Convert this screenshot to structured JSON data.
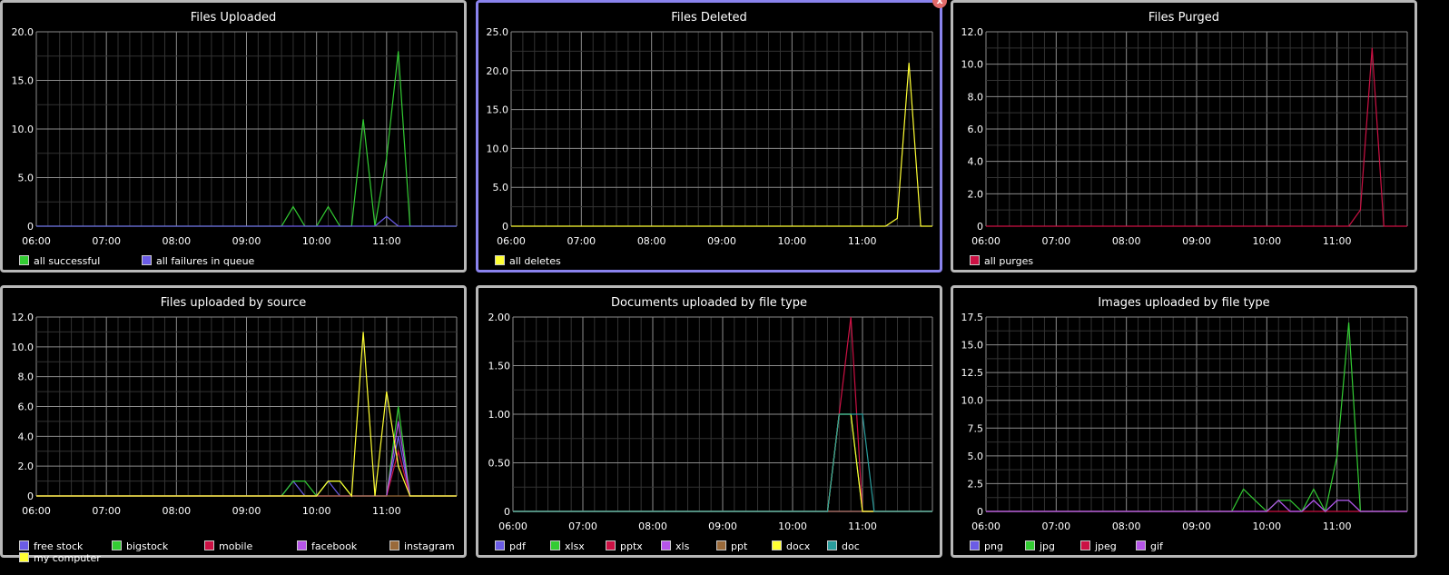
{
  "colors": {
    "grid_minor": "#333333",
    "grid_major": "#8c8c8c",
    "axis_text": "#ffffff",
    "border": "#b8b8b8",
    "selected_border": "#8a83ee"
  },
  "panels": [
    {
      "title": "Files Uploaded",
      "selected": false
    },
    {
      "title": "Files Deleted",
      "selected": true,
      "close_label": "x"
    },
    {
      "title": "Files Purged",
      "selected": false
    },
    {
      "title": "Files uploaded by source",
      "selected": false
    },
    {
      "title": "Documents uploaded by file type",
      "selected": false
    },
    {
      "title": "Images uploaded by file type",
      "selected": false
    }
  ],
  "chart_data": [
    {
      "type": "line",
      "title": "Files Uploaded",
      "x_ticks": [
        "06:00",
        "07:00",
        "08:00",
        "09:00",
        "10:00",
        "11:00"
      ],
      "x_range": [
        "06:00",
        "12:00"
      ],
      "x": [
        "06:00",
        "06:10",
        "06:20",
        "06:30",
        "06:40",
        "06:50",
        "07:00",
        "07:10",
        "07:20",
        "07:30",
        "07:40",
        "07:50",
        "08:00",
        "08:10",
        "08:20",
        "08:30",
        "08:40",
        "08:50",
        "09:00",
        "09:10",
        "09:20",
        "09:30",
        "09:40",
        "09:50",
        "10:00",
        "10:10",
        "10:20",
        "10:30",
        "10:40",
        "10:50",
        "11:00",
        "11:10",
        "11:20",
        "11:30",
        "11:40",
        "11:50",
        "12:00"
      ],
      "ylim": [
        0,
        20
      ],
      "y_ticks": [
        "0",
        "5.0",
        "10.0",
        "15.0",
        "20.0"
      ],
      "series": [
        {
          "name": "all successful",
          "color": "#33cc33",
          "values": [
            0,
            0,
            0,
            0,
            0,
            0,
            0,
            0,
            0,
            0,
            0,
            0,
            0,
            0,
            0,
            0,
            0,
            0,
            0,
            0,
            0,
            0,
            2,
            0,
            0,
            2,
            0,
            0,
            11,
            0,
            7,
            18,
            0,
            0,
            0,
            0,
            0
          ]
        },
        {
          "name": "all failures in queue",
          "color": "#6b5ce6",
          "values": [
            0,
            0,
            0,
            0,
            0,
            0,
            0,
            0,
            0,
            0,
            0,
            0,
            0,
            0,
            0,
            0,
            0,
            0,
            0,
            0,
            0,
            0,
            0,
            0,
            0,
            0,
            0,
            0,
            0,
            0,
            1,
            0,
            0,
            0,
            0,
            0,
            0
          ]
        }
      ],
      "legend": [
        "all successful",
        "all failures in queue"
      ]
    },
    {
      "type": "line",
      "title": "Files Deleted",
      "x_ticks": [
        "06:00",
        "07:00",
        "08:00",
        "09:00",
        "10:00",
        "11:00"
      ],
      "x_range": [
        "06:00",
        "12:00"
      ],
      "x": [
        "06:00",
        "11:20",
        "11:30",
        "11:40",
        "11:50",
        "12:00"
      ],
      "ylim": [
        0,
        25
      ],
      "y_ticks": [
        "0",
        "5.0",
        "10.0",
        "15.0",
        "20.0",
        "25.0"
      ],
      "series": [
        {
          "name": "all deletes",
          "color": "#ffff33",
          "values": [
            0,
            0,
            1,
            21,
            0,
            0
          ]
        }
      ],
      "legend": [
        "all deletes"
      ]
    },
    {
      "type": "line",
      "title": "Files Purged",
      "x_ticks": [
        "06:00",
        "07:00",
        "08:00",
        "09:00",
        "10:00",
        "11:00"
      ],
      "x_range": [
        "06:00",
        "12:00"
      ],
      "x": [
        "06:00",
        "11:10",
        "11:20",
        "11:30",
        "11:40",
        "12:00"
      ],
      "ylim": [
        0,
        12
      ],
      "y_ticks": [
        "0",
        "2.0",
        "4.0",
        "6.0",
        "8.0",
        "10.0",
        "12.0"
      ],
      "series": [
        {
          "name": "all purges",
          "color": "#cc1144",
          "values": [
            0,
            0,
            1,
            11,
            0,
            0
          ]
        }
      ],
      "legend": [
        "all purges"
      ]
    },
    {
      "type": "line",
      "title": "Files uploaded by source",
      "x_ticks": [
        "06:00",
        "07:00",
        "08:00",
        "09:00",
        "10:00",
        "11:00"
      ],
      "x_range": [
        "06:00",
        "12:00"
      ],
      "x": [
        "06:00",
        "09:30",
        "09:40",
        "09:50",
        "10:00",
        "10:10",
        "10:20",
        "10:30",
        "10:40",
        "10:50",
        "11:00",
        "11:10",
        "11:20",
        "12:00"
      ],
      "ylim": [
        0,
        12
      ],
      "y_ticks": [
        "0",
        "2.0",
        "4.0",
        "6.0",
        "8.0",
        "10.0",
        "12.0"
      ],
      "series": [
        {
          "name": "free stock",
          "color": "#6b5ce6",
          "values": [
            0,
            0,
            1,
            0,
            0,
            1,
            0,
            0,
            0,
            0,
            0,
            4,
            0,
            0
          ]
        },
        {
          "name": "bigstock",
          "color": "#33cc33",
          "values": [
            0,
            0,
            1,
            1,
            0,
            1,
            1,
            0,
            0,
            0,
            0,
            6,
            0,
            0
          ]
        },
        {
          "name": "mobile",
          "color": "#cc1144",
          "values": [
            0,
            0,
            0,
            0,
            0,
            0,
            0,
            0,
            0,
            0,
            0,
            3,
            0,
            0
          ]
        },
        {
          "name": "facebook",
          "color": "#b655e8",
          "values": [
            0,
            0,
            0,
            0,
            0,
            0,
            0,
            0,
            0,
            0,
            0,
            5,
            0,
            0
          ]
        },
        {
          "name": "instagram",
          "color": "#9a6a3a",
          "values": [
            0,
            0,
            0,
            0,
            0,
            0,
            0,
            0,
            0,
            0,
            0,
            0,
            0,
            0
          ]
        },
        {
          "name": "my computer",
          "color": "#ffff33",
          "values": [
            0,
            0,
            0,
            0,
            0,
            1,
            1,
            0,
            11,
            0,
            7,
            2,
            0,
            0
          ]
        }
      ],
      "legend": [
        "free stock",
        "bigstock",
        "mobile",
        "facebook",
        "instagram",
        "my computer"
      ]
    },
    {
      "type": "line",
      "title": "Documents uploaded by file type",
      "x_ticks": [
        "06:00",
        "07:00",
        "08:00",
        "09:00",
        "10:00",
        "11:00"
      ],
      "x_range": [
        "06:00",
        "12:00"
      ],
      "x": [
        "06:00",
        "10:30",
        "10:40",
        "10:50",
        "11:00",
        "11:10",
        "12:00"
      ],
      "ylim": [
        0,
        2
      ],
      "y_ticks": [
        "0",
        "0.50",
        "1.00",
        "1.50",
        "2.00"
      ],
      "series": [
        {
          "name": "pdf",
          "color": "#6b5ce6",
          "values": [
            0,
            0,
            0,
            0,
            0,
            0,
            0
          ]
        },
        {
          "name": "xlsx",
          "color": "#33cc33",
          "values": [
            0,
            0,
            1,
            1,
            0,
            0,
            0
          ]
        },
        {
          "name": "pptx",
          "color": "#cc1144",
          "values": [
            0,
            0,
            1,
            2,
            0,
            0,
            0
          ]
        },
        {
          "name": "xls",
          "color": "#b655e8",
          "values": [
            0,
            0,
            0,
            0,
            0,
            0,
            0
          ]
        },
        {
          "name": "ppt",
          "color": "#9a6a3a",
          "values": [
            0,
            0,
            0,
            0,
            0,
            0,
            0
          ]
        },
        {
          "name": "docx",
          "color": "#ffff33",
          "values": [
            0,
            0,
            1,
            1,
            0,
            0,
            0
          ]
        },
        {
          "name": "doc",
          "color": "#2a9d9d",
          "values": [
            0,
            0,
            1,
            1,
            1,
            0,
            0
          ]
        }
      ],
      "legend": [
        "pdf",
        "xlsx",
        "pptx",
        "xls",
        "ppt",
        "docx",
        "doc"
      ]
    },
    {
      "type": "line",
      "title": "Images uploaded by file type",
      "x_ticks": [
        "06:00",
        "07:00",
        "08:00",
        "09:00",
        "10:00",
        "11:00"
      ],
      "x_range": [
        "06:00",
        "12:00"
      ],
      "x": [
        "06:00",
        "09:30",
        "09:40",
        "09:50",
        "10:00",
        "10:10",
        "10:20",
        "10:30",
        "10:40",
        "10:50",
        "11:00",
        "11:10",
        "11:20",
        "12:00"
      ],
      "ylim": [
        0,
        17.5
      ],
      "y_ticks": [
        "0",
        "2.5",
        "5.0",
        "7.5",
        "10.0",
        "12.5",
        "15.0",
        "17.5"
      ],
      "series": [
        {
          "name": "png",
          "color": "#6b5ce6",
          "values": [
            0,
            0,
            0,
            0,
            0,
            1,
            0,
            0,
            1,
            0,
            1,
            1,
            0,
            0
          ]
        },
        {
          "name": "jpg",
          "color": "#33cc33",
          "values": [
            0,
            0,
            2,
            1,
            0,
            1,
            1,
            0,
            2,
            0,
            5,
            17,
            0,
            0
          ]
        },
        {
          "name": "jpeg",
          "color": "#cc1144",
          "values": [
            0,
            0,
            0,
            0,
            0,
            0,
            0,
            0,
            0,
            0,
            0,
            0,
            0,
            0
          ]
        },
        {
          "name": "gif",
          "color": "#b655e8",
          "values": [
            0,
            0,
            0,
            0,
            0,
            1,
            0,
            0,
            1,
            0,
            1,
            1,
            0,
            0
          ]
        }
      ],
      "legend": [
        "png",
        "jpg",
        "jpeg",
        "gif"
      ]
    }
  ]
}
